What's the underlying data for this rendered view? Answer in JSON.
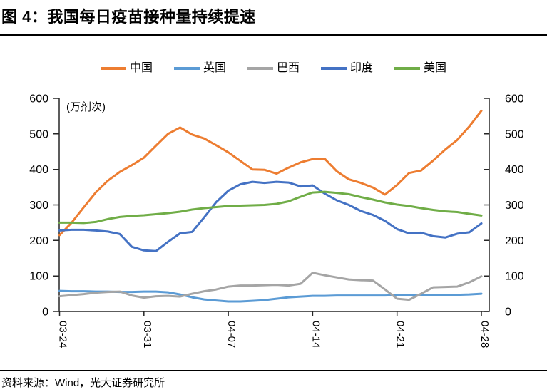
{
  "page": {
    "title": "图 4：我国每日疫苗接种量持续提速",
    "source": "资料来源：Wind，光大证券研究所"
  },
  "colors": {
    "axis": "#262626",
    "text": "#000000",
    "rule": "#000000"
  },
  "chart_data": {
    "type": "line",
    "title": "图 4：我国每日疫苗接种量持续提速",
    "unit_label": "(万剂次)",
    "grid": false,
    "legend_position": "top center",
    "y_axis_sides": "left and right",
    "ylim": [
      0,
      600
    ],
    "y_ticks": [
      0,
      100,
      200,
      300,
      400,
      500,
      600
    ],
    "x_tick_labels": [
      "03-24",
      "03-31",
      "04-07",
      "04-14",
      "04-21",
      "04-28"
    ],
    "x_tick_indices": [
      0,
      7,
      14,
      21,
      28,
      35
    ],
    "x": [
      "03-24",
      "03-25",
      "03-26",
      "03-27",
      "03-28",
      "03-29",
      "03-30",
      "03-31",
      "04-01",
      "04-02",
      "04-03",
      "04-04",
      "04-05",
      "04-06",
      "04-07",
      "04-08",
      "04-09",
      "04-10",
      "04-11",
      "04-12",
      "04-13",
      "04-14",
      "04-15",
      "04-16",
      "04-17",
      "04-18",
      "04-19",
      "04-20",
      "04-21",
      "04-22",
      "04-23",
      "04-24",
      "04-25",
      "04-26",
      "04-27",
      "04-28"
    ],
    "series": [
      {
        "name": "中国",
        "color": "#ED7D31",
        "values": [
          215,
          250,
          293,
          335,
          368,
          393,
          412,
          433,
          467,
          500,
          518,
          498,
          487,
          468,
          448,
          424,
          400,
          399,
          388,
          405,
          420,
          429,
          430,
          395,
          372,
          362,
          349,
          329,
          356,
          390,
          397,
          425,
          456,
          483,
          521,
          565
        ]
      },
      {
        "name": "英国",
        "color": "#5B9BD5",
        "values": [
          58,
          57,
          57,
          56,
          56,
          55,
          55,
          56,
          56,
          54,
          48,
          40,
          34,
          31,
          28,
          28,
          30,
          32,
          36,
          40,
          42,
          44,
          44,
          45,
          45,
          45,
          45,
          45,
          46,
          46,
          46,
          46,
          47,
          47,
          48,
          50
        ]
      },
      {
        "name": "巴西",
        "color": "#A5A5A5",
        "values": [
          43,
          46,
          49,
          53,
          55,
          56,
          45,
          39,
          43,
          44,
          42,
          50,
          57,
          62,
          70,
          73,
          73,
          74,
          75,
          73,
          78,
          109,
          102,
          96,
          90,
          88,
          87,
          62,
          36,
          33,
          50,
          68,
          69,
          70,
          82,
          99
        ]
      },
      {
        "name": "印度",
        "color": "#4472C4",
        "values": [
          228,
          230,
          230,
          228,
          225,
          218,
          182,
          172,
          170,
          196,
          220,
          224,
          265,
          308,
          340,
          358,
          365,
          362,
          365,
          363,
          352,
          355,
          332,
          313,
          300,
          283,
          272,
          255,
          232,
          220,
          222,
          212,
          208,
          219,
          223,
          248
        ]
      },
      {
        "name": "美国",
        "color": "#70AD47",
        "values": [
          250,
          250,
          249,
          252,
          260,
          266,
          269,
          271,
          274,
          277,
          281,
          287,
          291,
          294,
          297,
          298,
          299,
          300,
          303,
          310,
          323,
          335,
          337,
          334,
          330,
          322,
          315,
          307,
          301,
          297,
          291,
          286,
          282,
          280,
          275,
          270
        ]
      }
    ]
  }
}
